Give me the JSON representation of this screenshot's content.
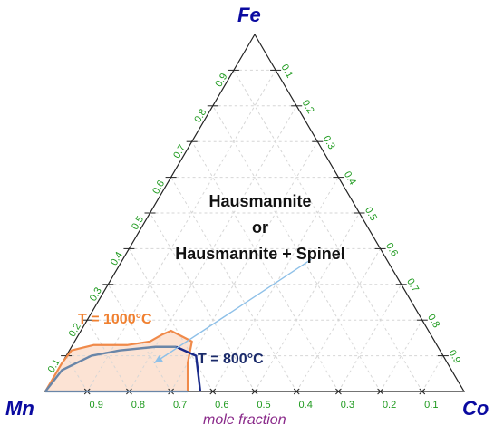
{
  "vertices": {
    "top": "Fe",
    "left": "Mn",
    "right": "Co"
  },
  "axis_label": "mole fraction",
  "ticks": {
    "bottom": [
      "0.9",
      "0.8",
      "0.7",
      "0.6",
      "0.5",
      "0.4",
      "0.3",
      "0.2",
      "0.1"
    ],
    "left": [
      "0.1",
      "0.2",
      "0.3",
      "0.4",
      "0.5",
      "0.6",
      "0.7",
      "0.8",
      "0.9"
    ],
    "right": [
      "0.1",
      "0.2",
      "0.3",
      "0.4",
      "0.5",
      "0.6",
      "0.7",
      "0.8",
      "0.9"
    ]
  },
  "region_label": {
    "line1": "Hausmannite",
    "line2": "or",
    "line3": "Hausmannite + Spinel"
  },
  "curves": {
    "t1000": {
      "label": "T = 1000°C",
      "color": "#f08a4a",
      "fill": "#fce3d4"
    },
    "t800": {
      "label": "T = 800°C",
      "color": "#1a2a8a",
      "inner_color": "#6a86a8"
    }
  },
  "arrow_color": "#8ec0e8",
  "chart_data": {
    "type": "ternary",
    "components": [
      "Fe",
      "Mn",
      "Co"
    ],
    "series": [
      {
        "name": "T = 1000°C",
        "points_fe_co": [
          [
            0.0,
            0.0
          ],
          [
            0.08,
            0.0
          ],
          [
            0.115,
            0.005
          ],
          [
            0.13,
            0.05
          ],
          [
            0.13,
            0.13
          ],
          [
            0.14,
            0.18
          ],
          [
            0.16,
            0.2
          ],
          [
            0.17,
            0.215
          ],
          [
            0.14,
            0.28
          ],
          [
            0.08,
            0.3
          ],
          [
            0.0,
            0.34
          ]
        ]
      },
      {
        "name": "T = 800°C",
        "points_fe_co": [
          [
            0.0,
            0.0
          ],
          [
            0.06,
            0.01
          ],
          [
            0.1,
            0.06
          ],
          [
            0.115,
            0.12
          ],
          [
            0.125,
            0.2
          ],
          [
            0.125,
            0.25
          ],
          [
            0.1,
            0.31
          ],
          [
            0.05,
            0.34
          ],
          [
            0.0,
            0.37
          ]
        ]
      }
    ]
  }
}
